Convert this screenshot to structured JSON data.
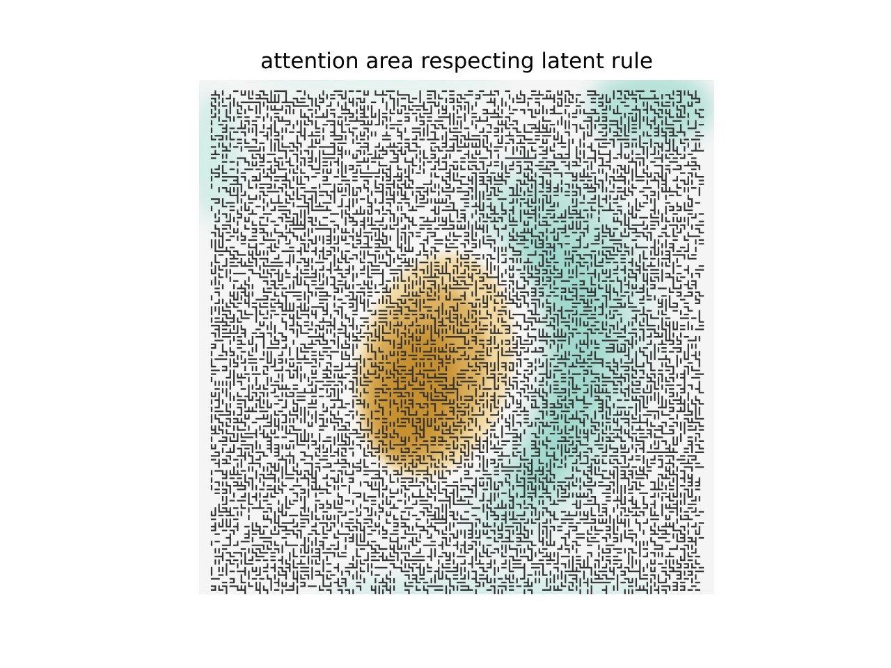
{
  "figure": {
    "title": "attention area respecting latent rule"
  },
  "colors": {
    "background": "#f5f5f5",
    "positive_attention": "#c7902f",
    "positive_attention_light": "#f1d9a1",
    "negative_attention": "#84cfc0",
    "negative_attention_light": "#cdebe4",
    "maze_lines": "#333333"
  }
}
